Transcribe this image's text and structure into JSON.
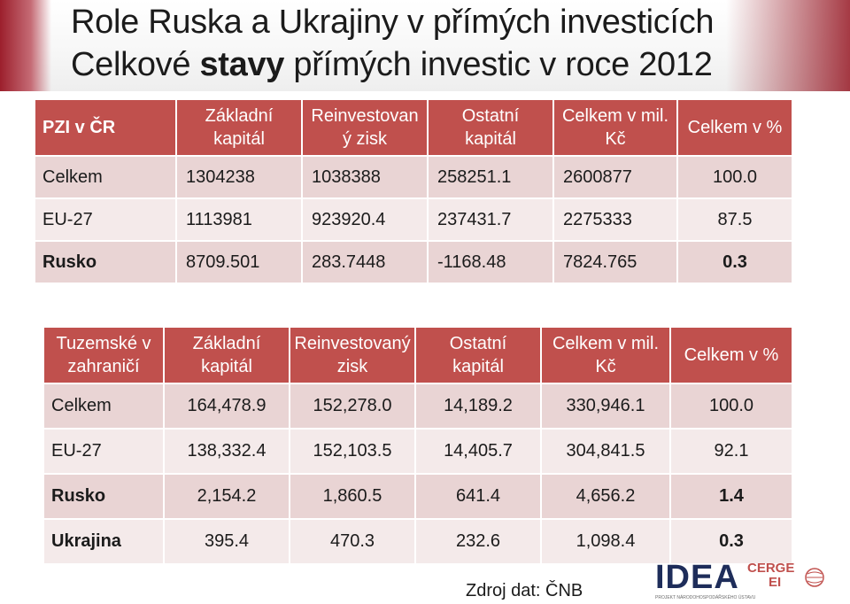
{
  "title": {
    "line1": "Role Ruska a Ukrajiny v přímých investicích",
    "line2_pre": "Celkové ",
    "line2_bold": "stavy",
    "line2_post": " přímých investic v roce 2012"
  },
  "table1": {
    "headers": {
      "c0": "PZI v ČR",
      "c1a": "Základní",
      "c1b": "kapitál",
      "c2a": "Reinvestovan",
      "c2b": "ý zisk",
      "c3a": "Ostatní",
      "c3b": "kapitál",
      "c4a": "Celkem v mil.",
      "c4b": "Kč",
      "c5": "Celkem v %"
    },
    "rows": [
      {
        "label": "Celkem",
        "v1": "1304238",
        "v2": "1038388",
        "v3": "258251.1",
        "v4": "2600877",
        "v5": "100.0"
      },
      {
        "label": "EU-27",
        "v1": "1113981",
        "v2": "923920.4",
        "v3": "237431.7",
        "v4": "2275333",
        "v5": "87.5"
      },
      {
        "label": "Rusko",
        "v1": "8709.501",
        "v2": "283.7448",
        "v3": "-1168.48",
        "v4": "7824.765",
        "v5": "0.3"
      }
    ]
  },
  "table2": {
    "headers": {
      "c0a": "Tuzemské v",
      "c0b": "zahraničí",
      "c1a": "Základní",
      "c1b": "kapitál",
      "c2a": "Reinvestovaný",
      "c2b": "zisk",
      "c3a": "Ostatní",
      "c3b": "kapitál",
      "c4a": "Celkem v mil.",
      "c4b": "Kč",
      "c5": "Celkem v %"
    },
    "rows": [
      {
        "label": "Celkem",
        "v1": "164,478.9",
        "v2": "152,278.0",
        "v3": "14,189.2",
        "v4": "330,946.1",
        "v5": "100.0"
      },
      {
        "label": "EU-27",
        "v1": "138,332.4",
        "v2": "152,103.5",
        "v3": "14,405.7",
        "v4": "304,841.5",
        "v5": "92.1"
      },
      {
        "label": "Rusko",
        "v1": "2,154.2",
        "v2": "1,860.5",
        "v3": "641.4",
        "v4": "4,656.2",
        "v5": "1.4"
      },
      {
        "label": "Ukrajina",
        "v1": "395.4",
        "v2": "470.3",
        "v3": "232.6",
        "v4": "1,098.4",
        "v5": "0.3"
      }
    ]
  },
  "source": "Zdroj dat: ČNB",
  "logo": {
    "idea": "IDEA",
    "cerge": "CERGE",
    "ei": "EI",
    "subtitle": "PROJEKT NÁRODOHOSPODÁŘSKÉHO ÚSTAVU"
  },
  "colors": {
    "header": "#c0504d",
    "row_dark": "#e9d4d4",
    "row_light": "#f4eaea",
    "accent_strip": "#9c1f2c",
    "logo_blue": "#1e2d5a"
  }
}
